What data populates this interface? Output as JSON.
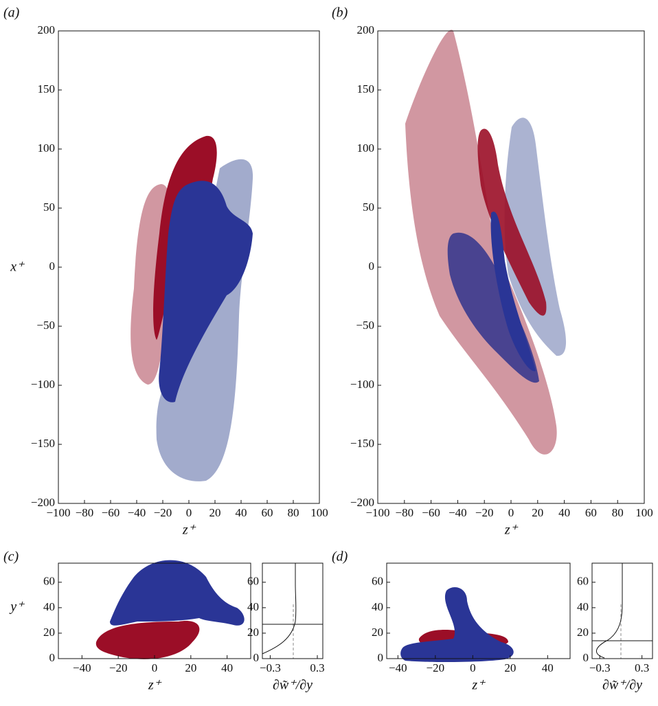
{
  "chart_data": [
    {
      "type": "isosurface",
      "title": "(a)",
      "xlabel": "z⁺",
      "ylabel": "x⁺",
      "xlim": [
        -100,
        100
      ],
      "ylim": [
        -200,
        200
      ],
      "xticks": [
        {
          "value": -100,
          "label": "−100"
        },
        {
          "value": -80,
          "label": "−80"
        },
        {
          "value": -60,
          "label": "−60"
        },
        {
          "value": -40,
          "label": "−40"
        },
        {
          "value": -20,
          "label": "−20"
        },
        0,
        20,
        40,
        60,
        80,
        100
      ],
      "yticks": [
        {
          "value": -200,
          "label": "−200"
        },
        {
          "value": -150,
          "label": "−150"
        },
        {
          "value": -100,
          "label": "−100"
        },
        {
          "value": -50,
          "label": "−50"
        },
        0,
        50,
        100,
        150,
        200
      ]
    },
    {
      "type": "isosurface",
      "title": "(b)",
      "xlabel": "z⁺",
      "xlim": [
        -100,
        100
      ],
      "ylim": [
        -200,
        200
      ],
      "xticks": [
        {
          "value": -100,
          "label": "−100"
        },
        {
          "value": -80,
          "label": "−80"
        },
        {
          "value": -60,
          "label": "−60"
        },
        {
          "value": -40,
          "label": "−40"
        },
        {
          "value": -20,
          "label": "−20"
        },
        0,
        20,
        40,
        60,
        80,
        100
      ],
      "yticks": [
        {
          "value": -200,
          "label": "−200"
        },
        {
          "value": -150,
          "label": "−150"
        },
        {
          "value": -100,
          "label": "−100"
        },
        {
          "value": -50,
          "label": "−50"
        },
        0,
        50,
        100,
        150,
        200
      ]
    },
    {
      "type": "isosurface",
      "title": "(c)",
      "xlabel": "z⁺",
      "ylabel": "y⁺",
      "xlim": [
        -53,
        53
      ],
      "ylim": [
        0,
        75
      ],
      "xticks": [
        {
          "value": -40,
          "label": "−40"
        },
        {
          "value": -20,
          "label": "−20"
        },
        0,
        20,
        40
      ],
      "yticks": [
        0,
        20,
        40,
        60
      ]
    },
    {
      "type": "profile",
      "xlabel": "∂w̃⁺/∂y",
      "xlim": [
        -0.4,
        0.37
      ],
      "ylim": [
        0,
        75
      ],
      "xticks": [
        {
          "value": -0.3,
          "label": "−0.3"
        },
        0.3
      ],
      "yticks": [
        0,
        20,
        40,
        60
      ]
    },
    {
      "type": "isosurface",
      "title": "(d)",
      "xlabel": "z⁺",
      "xlim": [
        -46,
        52
      ],
      "ylim": [
        0,
        75
      ],
      "xticks": [
        {
          "value": -40,
          "label": "−40"
        },
        {
          "value": -20,
          "label": "−20"
        },
        0,
        20,
        40
      ],
      "yticks": [
        0,
        20,
        40,
        60
      ]
    },
    {
      "type": "profile",
      "xlabel": "∂w̃⁺/∂y",
      "xlim": [
        -0.41,
        0.45
      ],
      "ylim": [
        0,
        75
      ],
      "xticks": [
        {
          "value": -0.3,
          "label": "−0.3"
        },
        0.3
      ],
      "yticks": [
        0,
        20,
        40,
        60
      ]
    }
  ]
}
